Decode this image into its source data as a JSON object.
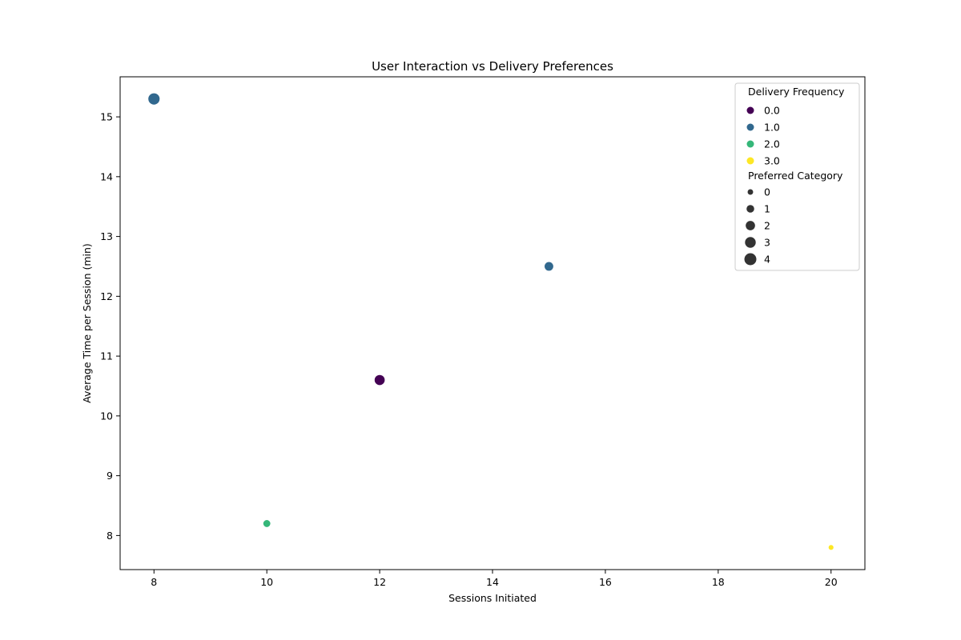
{
  "chart_data": {
    "type": "scatter",
    "title": "User Interaction vs Delivery Preferences",
    "xlabel": "Sessions Initiated",
    "ylabel": "Average Time per Session (min)",
    "xlim": [
      7.4,
      20.6
    ],
    "ylim": [
      7.43,
      15.67
    ],
    "xticks": [
      8,
      10,
      12,
      14,
      16,
      18,
      20
    ],
    "yticks": [
      8,
      9,
      10,
      11,
      12,
      13,
      14,
      15
    ],
    "grid": false,
    "legend_position": "top-right",
    "points": [
      {
        "x": 8,
        "y": 15.3,
        "delivery_frequency": 1.0,
        "preferred_category": 4
      },
      {
        "x": 15,
        "y": 12.5,
        "delivery_frequency": 1.0,
        "preferred_category": 2
      },
      {
        "x": 12,
        "y": 10.6,
        "delivery_frequency": 0.0,
        "preferred_category": 3
      },
      {
        "x": 10,
        "y": 8.2,
        "delivery_frequency": 2.0,
        "preferred_category": 1
      },
      {
        "x": 20,
        "y": 7.8,
        "delivery_frequency": 3.0,
        "preferred_category": 0
      }
    ],
    "legend": {
      "hue_title": "Delivery Frequency",
      "hue_entries": [
        {
          "label": "0.0",
          "color": "#440154"
        },
        {
          "label": "1.0",
          "color": "#31688e"
        },
        {
          "label": "2.0",
          "color": "#35b779"
        },
        {
          "label": "3.0",
          "color": "#fde725"
        }
      ],
      "size_title": "Preferred Category",
      "size_entries": [
        {
          "label": "0",
          "value": 0
        },
        {
          "label": "1",
          "value": 1
        },
        {
          "label": "2",
          "value": 2
        },
        {
          "label": "3",
          "value": 3
        },
        {
          "label": "4",
          "value": 4
        }
      ]
    },
    "colors": {
      "0.0": "#440154",
      "1.0": "#31688e",
      "2.0": "#35b779",
      "3.0": "#fde725"
    }
  }
}
